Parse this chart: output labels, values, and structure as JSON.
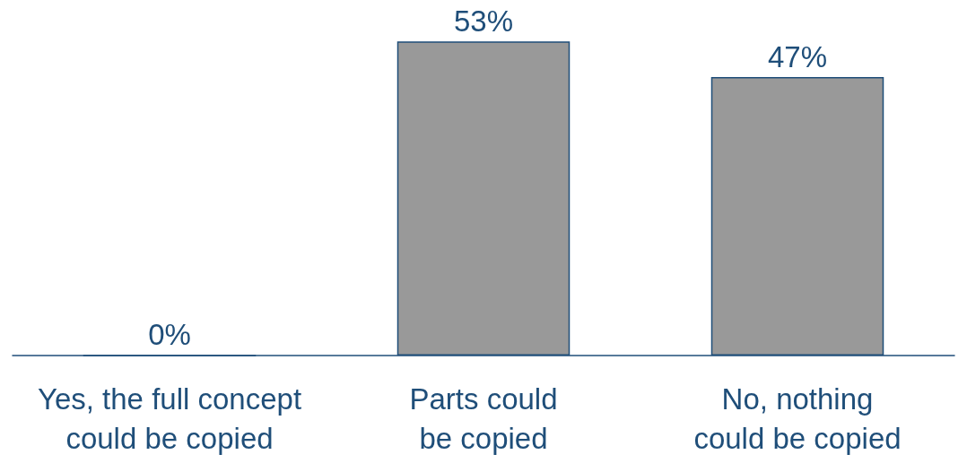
{
  "chart_data": {
    "type": "bar",
    "categories": [
      "Yes, the full concept could be copied",
      "Parts could be copied",
      "No, nothing could be copied"
    ],
    "values": [
      0,
      53,
      47
    ],
    "value_labels": [
      "0%",
      "53%",
      "47%"
    ],
    "color": "#999999"
  }
}
